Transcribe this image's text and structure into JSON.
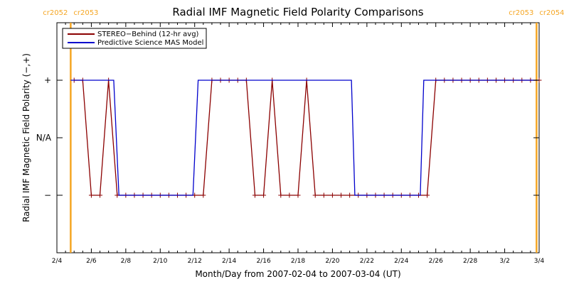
{
  "chart_data": {
    "type": "line",
    "title": "Radial IMF Magnetic Field Polarity Comparisons",
    "xlabel": "Month/Day from 2007-02-04 to 2007-03-04 (UT)",
    "ylabel": "Radial IMF Magnetic Field Polarity (−,+)",
    "xlim": [
      0,
      28
    ],
    "ylim": [
      -2,
      2
    ],
    "x_ticks": [
      {
        "x": 0,
        "label": "2/4"
      },
      {
        "x": 2,
        "label": "2/6"
      },
      {
        "x": 4,
        "label": "2/8"
      },
      {
        "x": 6,
        "label": "2/10"
      },
      {
        "x": 8,
        "label": "2/12"
      },
      {
        "x": 10,
        "label": "2/14"
      },
      {
        "x": 12,
        "label": "2/16"
      },
      {
        "x": 14,
        "label": "2/18"
      },
      {
        "x": 16,
        "label": "2/20"
      },
      {
        "x": 18,
        "label": "2/22"
      },
      {
        "x": 20,
        "label": "2/24"
      },
      {
        "x": 22,
        "label": "2/26"
      },
      {
        "x": 24,
        "label": "2/28"
      },
      {
        "x": 26,
        "label": "3/2"
      },
      {
        "x": 28,
        "label": "3/4"
      }
    ],
    "y_ticks": [
      {
        "y": 1,
        "label": "+"
      },
      {
        "y": 0,
        "label": "N/A"
      },
      {
        "y": -1,
        "label": "−"
      }
    ],
    "carrington_markers": [
      {
        "x": 0.8,
        "left": "cr2052",
        "right": "cr2053",
        "color": "#f5a623"
      },
      {
        "x": 27.85,
        "left": "cr2053",
        "right": "cr2054",
        "color": "#f5a623"
      }
    ],
    "legend": {
      "position": "top-left"
    },
    "series": [
      {
        "name": "STEREO−Behind (12-hr avg)",
        "color": "#8b0000",
        "marker": "+",
        "points": [
          [
            1.0,
            1
          ],
          [
            1.5,
            1
          ],
          [
            2.0,
            -1
          ],
          [
            2.5,
            -1
          ],
          [
            3.0,
            1
          ],
          [
            3.5,
            -1
          ],
          [
            4.0,
            -1
          ],
          [
            4.5,
            -1
          ],
          [
            5.0,
            -1
          ],
          [
            5.5,
            -1
          ],
          [
            6.0,
            -1
          ],
          [
            6.5,
            -1
          ],
          [
            7.0,
            -1
          ],
          [
            7.5,
            -1
          ],
          [
            8.0,
            -1
          ],
          [
            8.5,
            -1
          ],
          [
            9.0,
            1
          ],
          [
            9.5,
            1
          ],
          [
            10.0,
            1
          ],
          [
            10.5,
            1
          ],
          [
            11.0,
            1
          ],
          [
            11.5,
            -1
          ],
          [
            12.0,
            -1
          ],
          [
            12.5,
            1
          ],
          [
            13.0,
            -1
          ],
          [
            13.5,
            -1
          ],
          [
            14.0,
            -1
          ],
          [
            14.5,
            1
          ],
          [
            15.0,
            -1
          ],
          [
            15.5,
            -1
          ],
          [
            16.0,
            -1
          ],
          [
            16.5,
            -1
          ],
          [
            17.0,
            -1
          ],
          [
            17.5,
            -1
          ],
          [
            18.0,
            -1
          ],
          [
            18.5,
            -1
          ],
          [
            19.0,
            -1
          ],
          [
            19.5,
            -1
          ],
          [
            20.0,
            -1
          ],
          [
            20.5,
            -1
          ],
          [
            21.0,
            -1
          ],
          [
            21.5,
            -1
          ],
          [
            22.0,
            1
          ],
          [
            22.5,
            1
          ],
          [
            23.0,
            1
          ],
          [
            23.5,
            1
          ],
          [
            24.0,
            1
          ],
          [
            24.5,
            1
          ],
          [
            25.0,
            1
          ],
          [
            25.5,
            1
          ],
          [
            26.0,
            1
          ],
          [
            26.5,
            1
          ],
          [
            27.0,
            1
          ],
          [
            27.5,
            1
          ],
          [
            28.0,
            1
          ]
        ]
      },
      {
        "name": "Predictive Science MAS Model",
        "color": "#0000cc",
        "points": [
          [
            0.8,
            1
          ],
          [
            3.3,
            1
          ],
          [
            3.6,
            -1
          ],
          [
            7.9,
            -1
          ],
          [
            8.2,
            1
          ],
          [
            17.1,
            1
          ],
          [
            17.3,
            -1
          ],
          [
            21.1,
            -1
          ],
          [
            21.3,
            1
          ],
          [
            27.9,
            1
          ]
        ]
      }
    ]
  }
}
